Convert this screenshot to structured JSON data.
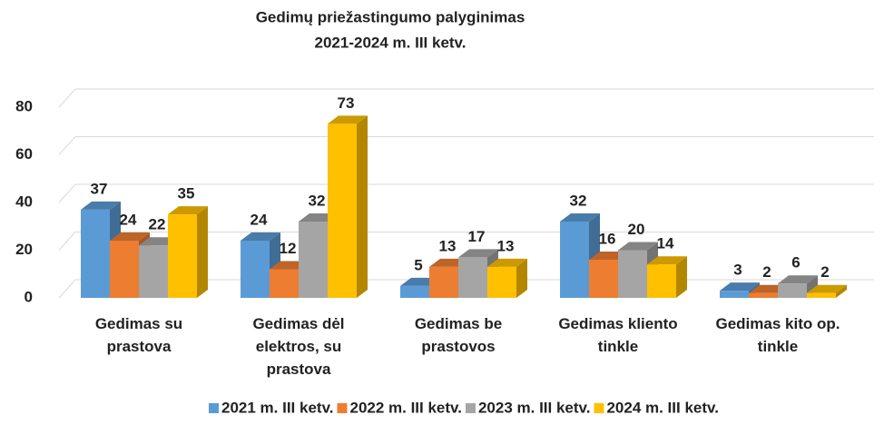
{
  "chart_data": {
    "type": "bar3d",
    "title": "Gedimų priežastingumo palyginimas",
    "subtitle": "2021-2024 m. III ketv.",
    "categories": [
      "Gedimas su prastova",
      "Gedimas dėl elektros, su prastova",
      "Gedimas be prastovos",
      "Gedimas kliento tinkle",
      "Gedimas kito op. tinkle"
    ],
    "series": [
      {
        "name": "2021 m. III ketv.",
        "color": "#5b9bd5",
        "values": [
          37,
          24,
          5,
          32,
          3
        ]
      },
      {
        "name": "2022 m. III ketv.",
        "color": "#ed7d31",
        "values": [
          24,
          12,
          13,
          16,
          2
        ]
      },
      {
        "name": "2023 m. III ketv.",
        "color": "#a5a5a5",
        "values": [
          22,
          32,
          17,
          20,
          6
        ]
      },
      {
        "name": "2024 m. III ketv.",
        "color": "#ffc000",
        "values": [
          35,
          73,
          13,
          14,
          2
        ]
      }
    ],
    "ylim": [
      0,
      80
    ],
    "yticks": [
      0,
      20,
      40,
      60,
      80
    ],
    "grid": true,
    "legend": "bottom"
  }
}
